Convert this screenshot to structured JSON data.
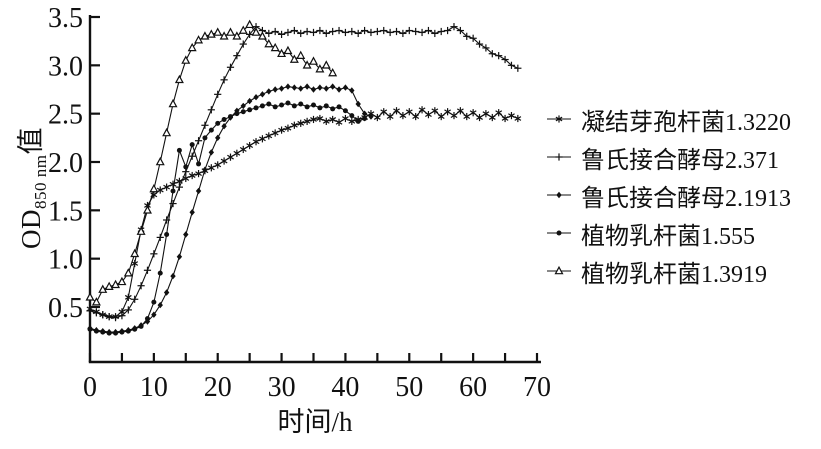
{
  "y_axis": {
    "prefix": "OD",
    "subscript": "850 nm",
    "suffix": "值"
  },
  "chart_data": {
    "type": "line",
    "title": "",
    "xlabel": "时间/h",
    "ylabel": "OD850nm值",
    "xlim": [
      0,
      70
    ],
    "ylim": [
      0,
      3.5
    ],
    "grid": false,
    "legend_position": "right",
    "x_ticks": [
      0,
      10,
      20,
      30,
      40,
      50,
      60,
      70
    ],
    "x_minor_tick_step": 5,
    "y_ticks": [
      0.5,
      1.0,
      1.5,
      2.0,
      2.5,
      3.0,
      3.5
    ],
    "y_tick_labels": [
      "0.5",
      "1.0",
      "1.5",
      "2.0",
      "2.5",
      "3.0",
      "3.5"
    ],
    "line_color": "#111111",
    "series": [
      {
        "name": "凝结芽孢杆菌1.3220",
        "marker": "asterisk",
        "x_start": 0,
        "x_step": 1,
        "y": [
          0.48,
          0.45,
          0.42,
          0.4,
          0.4,
          0.45,
          0.6,
          0.95,
          1.3,
          1.55,
          1.66,
          1.71,
          1.74,
          1.77,
          1.8,
          1.83,
          1.86,
          1.88,
          1.91,
          1.94,
          1.97,
          2.01,
          2.05,
          2.09,
          2.13,
          2.17,
          2.21,
          2.24,
          2.27,
          2.3,
          2.33,
          2.35,
          2.38,
          2.4,
          2.42,
          2.44,
          2.45,
          2.42,
          2.44,
          2.41,
          2.45,
          2.42,
          2.44,
          2.46,
          2.5,
          2.46,
          2.52,
          2.47,
          2.53,
          2.48,
          2.52,
          2.47,
          2.54,
          2.49,
          2.53,
          2.47,
          2.52,
          2.48,
          2.53,
          2.47,
          2.51,
          2.46,
          2.5,
          2.46,
          2.51,
          2.45,
          2.48,
          2.45
        ]
      },
      {
        "name": "鲁氏接合酵母2.371",
        "marker": "plus",
        "x_start": 0,
        "x_step": 1,
        "y": [
          0.46,
          0.44,
          0.42,
          0.4,
          0.39,
          0.41,
          0.47,
          0.58,
          0.72,
          0.88,
          1.05,
          1.22,
          1.4,
          1.57,
          1.74,
          1.9,
          2.06,
          2.22,
          2.38,
          2.54,
          2.7,
          2.85,
          2.98,
          3.1,
          3.22,
          3.32,
          3.4,
          3.36,
          3.33,
          3.35,
          3.32,
          3.34,
          3.36,
          3.33,
          3.35,
          3.34,
          3.36,
          3.33,
          3.35,
          3.36,
          3.34,
          3.35,
          3.33,
          3.36,
          3.34,
          3.35,
          3.36,
          3.34,
          3.35,
          3.33,
          3.36,
          3.35,
          3.34,
          3.36,
          3.33,
          3.35,
          3.36,
          3.4,
          3.36,
          3.3,
          3.28,
          3.22,
          3.18,
          3.12,
          3.1,
          3.06,
          3.0,
          2.97
        ]
      },
      {
        "name": "鲁氏接合酵母2.1913",
        "marker": "diamond-filled",
        "x_start": 0,
        "x_step": 1,
        "y": [
          0.28,
          0.26,
          0.25,
          0.24,
          0.24,
          0.25,
          0.26,
          0.28,
          0.31,
          0.35,
          0.42,
          0.52,
          0.65,
          0.82,
          1.02,
          1.25,
          1.48,
          1.7,
          1.92,
          2.1,
          2.25,
          2.37,
          2.46,
          2.53,
          2.58,
          2.63,
          2.67,
          2.7,
          2.73,
          2.75,
          2.76,
          2.78,
          2.77,
          2.76,
          2.78,
          2.75,
          2.77,
          2.76,
          2.78,
          2.75,
          2.77,
          2.74,
          2.6,
          2.5,
          2.47
        ]
      },
      {
        "name": "植物乳杆菌1.555",
        "marker": "circle-filled",
        "x_start": 0,
        "x_step": 1,
        "y": [
          0.27,
          0.25,
          0.24,
          0.23,
          0.23,
          0.24,
          0.25,
          0.27,
          0.3,
          0.38,
          0.55,
          0.85,
          1.25,
          1.7,
          2.12,
          1.95,
          2.18,
          1.98,
          2.25,
          2.33,
          2.4,
          2.44,
          2.47,
          2.5,
          2.52,
          2.54,
          2.56,
          2.58,
          2.6,
          2.57,
          2.59,
          2.61,
          2.58,
          2.6,
          2.57,
          2.59,
          2.56,
          2.58,
          2.55,
          2.57,
          2.53,
          2.48,
          2.42,
          2.45
        ]
      },
      {
        "name": "植物乳杆菌1.3919",
        "marker": "triangle-open",
        "x_start": 0,
        "x_step": 1,
        "y": [
          0.6,
          0.55,
          0.68,
          0.71,
          0.73,
          0.76,
          0.85,
          1.05,
          1.28,
          1.5,
          1.72,
          2.0,
          2.3,
          2.6,
          2.85,
          3.05,
          3.18,
          3.26,
          3.3,
          3.32,
          3.34,
          3.3,
          3.34,
          3.3,
          3.36,
          3.42,
          3.34,
          3.3,
          3.22,
          3.18,
          3.12,
          3.15,
          3.06,
          3.1,
          3.0,
          3.04,
          2.96,
          3.0,
          2.92
        ]
      }
    ]
  }
}
